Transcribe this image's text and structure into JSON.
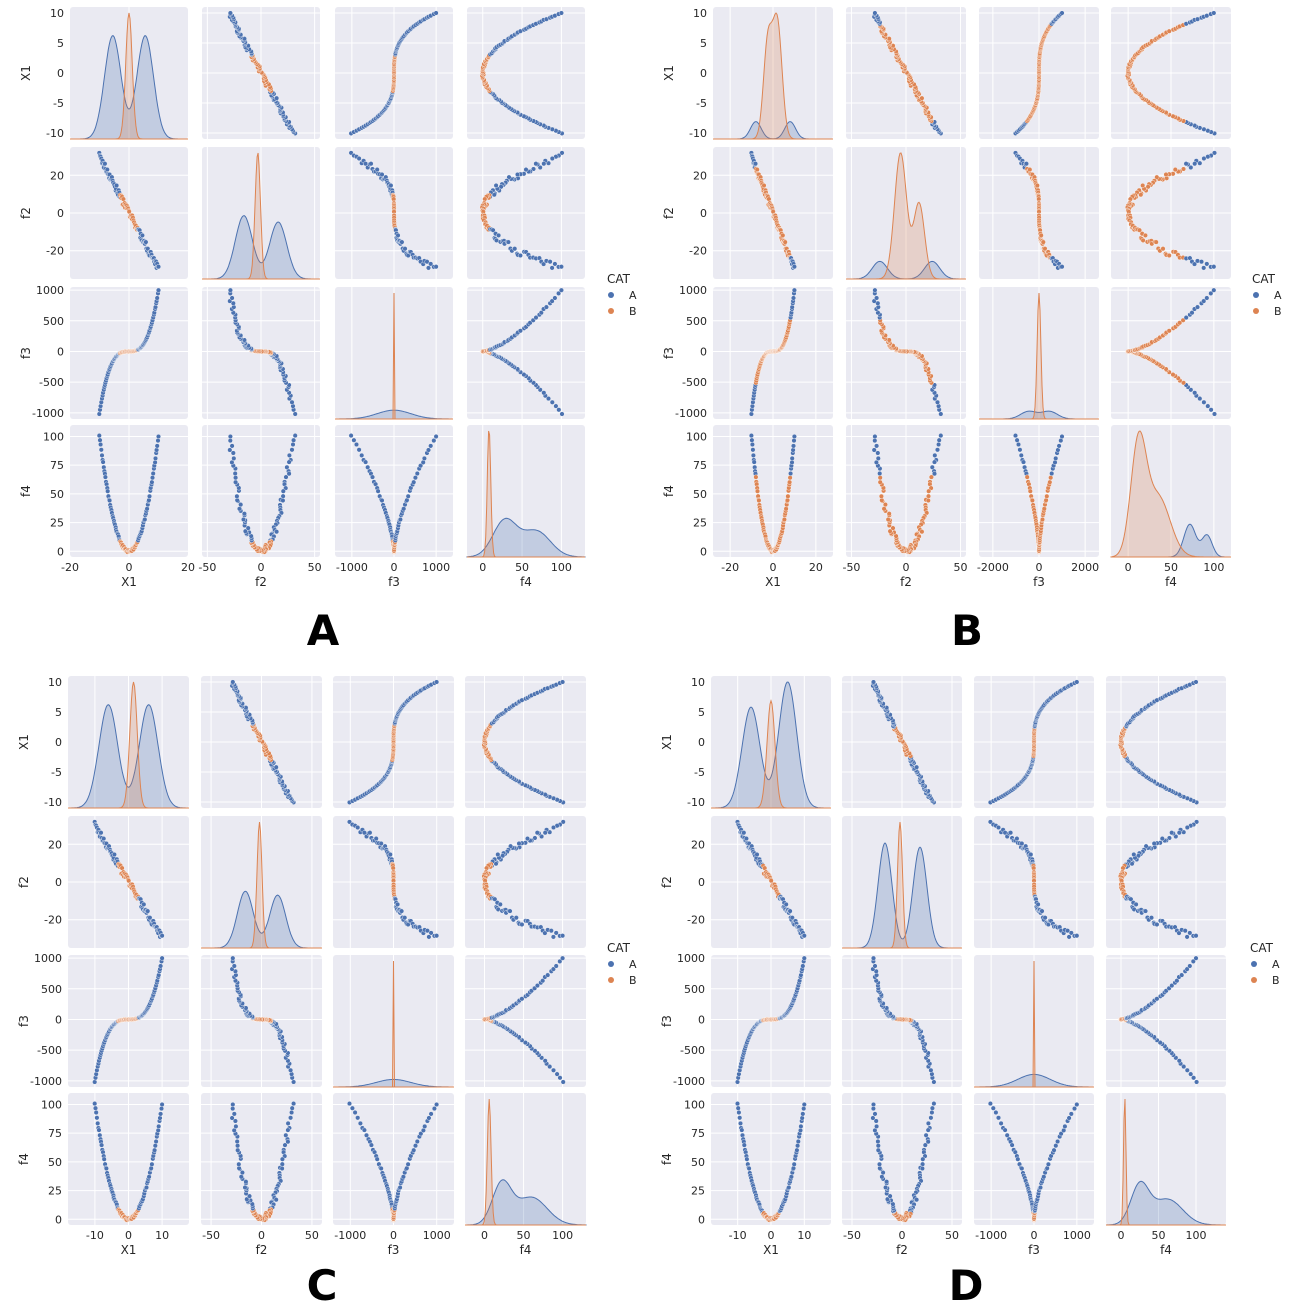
{
  "colors": {
    "A": "#4c72b0",
    "B": "#dd8452",
    "axes_bg": "#eaeaf2",
    "grid": "#ffffff"
  },
  "chart_data": [
    {
      "panel": "A",
      "type": "pairplot",
      "variables": [
        "X1",
        "f2",
        "f3",
        "f4"
      ],
      "hue": "CAT",
      "hue_levels": [
        "A",
        "B"
      ],
      "B_range": {
        "X1": [
          -3,
          3
        ]
      },
      "diag_kde": {
        "X1": {
          "A": [
            [
              -5.5,
              0.82,
              2.8
            ],
            [
              5.5,
              0.82,
              2.8
            ]
          ],
          "B": [
            [
              0,
              1.0,
              1.1
            ]
          ]
        },
        "f2": {
          "A": [
            [
              -16,
              0.5,
              8
            ],
            [
              16,
              0.45,
              8
            ]
          ],
          "B": [
            [
              -3,
              1.0,
              2.5
            ]
          ]
        },
        "f3": {
          "A": [
            [
              0,
              0.07,
              400
            ]
          ],
          "B": [
            [
              0,
              1.0,
              3
            ]
          ]
        },
        "f4": {
          "A": [
            [
              28,
              0.28,
              15
            ],
            [
              68,
              0.2,
              18
            ]
          ],
          "B": [
            [
              8,
              1.0,
              2.2
            ]
          ]
        }
      },
      "xlims": {
        "X1": [
          -20,
          20
        ],
        "f2": [
          -55,
          55
        ],
        "f3": [
          -1400,
          1400
        ],
        "f4": [
          -20,
          130
        ]
      },
      "ylims": {
        "X1": [
          -11,
          11
        ],
        "f2": [
          -35,
          35
        ],
        "f3": [
          -1100,
          1050
        ],
        "f4": [
          -5,
          110
        ]
      },
      "xticks": {
        "X1": [
          -20,
          0,
          20
        ],
        "f2": [
          -50,
          0,
          50
        ],
        "f3": [
          -1000,
          0,
          1000
        ],
        "f4": [
          0,
          50,
          100
        ]
      },
      "yticks": {
        "X1": [
          -10,
          -5,
          0,
          5,
          10
        ],
        "f2": [
          -20,
          0,
          20
        ],
        "f3": [
          -1000,
          -500,
          0,
          500,
          1000
        ],
        "f4": [
          0,
          25,
          50,
          75,
          100
        ]
      }
    },
    {
      "panel": "B",
      "type": "pairplot",
      "variables": [
        "X1",
        "f2",
        "f3",
        "f4"
      ],
      "hue": "CAT",
      "hue_levels": [
        "A",
        "B"
      ],
      "B_range": {
        "X1": [
          -8,
          8
        ]
      },
      "diag_kde": {
        "X1": {
          "A": [
            [
              -8,
              0.15,
              2.5
            ],
            [
              8,
              0.15,
              2.5
            ]
          ],
          "B": [
            [
              -2.5,
              0.8,
              2
            ],
            [
              2,
              1.0,
              2.2
            ]
          ]
        },
        "f2": {
          "A": [
            [
              -24,
              0.14,
              7
            ],
            [
              24,
              0.14,
              7
            ]
          ],
          "B": [
            [
              -5,
              1.0,
              5.5
            ],
            [
              12,
              0.6,
              5
            ]
          ]
        },
        "f3": {
          "A": [
            [
              -450,
              0.06,
              350
            ],
            [
              450,
              0.06,
              350
            ]
          ],
          "B": [
            [
              0,
              1.0,
              80
            ]
          ]
        },
        "f4": {
          "A": [
            [
              72,
              0.3,
              7
            ],
            [
              92,
              0.2,
              6
            ]
          ],
          "B": [
            [
              12,
              1.0,
              9
            ],
            [
              35,
              0.55,
              14
            ]
          ]
        }
      },
      "xlims": {
        "X1": [
          -28,
          28
        ],
        "f2": [
          -55,
          55
        ],
        "f3": [
          -2600,
          2600
        ],
        "f4": [
          -20,
          120
        ]
      },
      "ylims": {
        "X1": [
          -11,
          11
        ],
        "f2": [
          -35,
          35
        ],
        "f3": [
          -1100,
          1050
        ],
        "f4": [
          -5,
          110
        ]
      },
      "xticks": {
        "X1": [
          -20,
          0,
          20
        ],
        "f2": [
          -50,
          0,
          50
        ],
        "f3": [
          -2000,
          0,
          2000
        ],
        "f4": [
          0,
          50,
          100
        ]
      },
      "yticks": {
        "X1": [
          -10,
          -5,
          0,
          5,
          10
        ],
        "f2": [
          -20,
          0,
          20
        ],
        "f3": [
          -1000,
          -500,
          0,
          500,
          1000
        ],
        "f4": [
          0,
          25,
          50,
          75,
          100
        ]
      }
    },
    {
      "panel": "C",
      "type": "pairplot",
      "variables": [
        "X1",
        "f2",
        "f3",
        "f4"
      ],
      "hue": "CAT",
      "hue_levels": [
        "A",
        "B"
      ],
      "B_range": {
        "X1": [
          -3,
          3
        ]
      },
      "diag_kde": {
        "X1": {
          "A": [
            [
              -6,
              0.82,
              2.8
            ],
            [
              6,
              0.82,
              2.8
            ]
          ],
          "B": [
            [
              1.5,
              1.0,
              1.1
            ]
          ]
        },
        "f2": {
          "A": [
            [
              -16,
              0.45,
              8
            ],
            [
              16,
              0.42,
              8
            ]
          ],
          "B": [
            [
              -2,
              1.0,
              2.5
            ]
          ]
        },
        "f3": {
          "A": [
            [
              0,
              0.06,
              400
            ]
          ],
          "B": [
            [
              0,
              1.0,
              3
            ]
          ]
        },
        "f4": {
          "A": [
            [
              22,
              0.32,
              12
            ],
            [
              60,
              0.22,
              20
            ]
          ],
          "B": [
            [
              6,
              1.0,
              2.4
            ]
          ]
        }
      },
      "xlims": {
        "X1": [
          -18,
          18
        ],
        "f2": [
          -60,
          60
        ],
        "f3": [
          -1400,
          1400
        ],
        "f4": [
          -25,
          130
        ]
      },
      "ylims": {
        "X1": [
          -11,
          11
        ],
        "f2": [
          -35,
          35
        ],
        "f3": [
          -1100,
          1050
        ],
        "f4": [
          -5,
          110
        ]
      },
      "xticks": {
        "X1": [
          -10,
          0,
          10
        ],
        "f2": [
          -50,
          0,
          50
        ],
        "f3": [
          -1000,
          0,
          1000
        ],
        "f4": [
          0,
          50,
          100
        ]
      },
      "yticks": {
        "X1": [
          -10,
          -5,
          0,
          5,
          10
        ],
        "f2": [
          -20,
          0,
          20
        ],
        "f3": [
          -1000,
          -500,
          0,
          500,
          1000
        ],
        "f4": [
          0,
          25,
          50,
          75,
          100
        ]
      }
    },
    {
      "panel": "D",
      "type": "pairplot",
      "variables": [
        "X1",
        "f2",
        "f3",
        "f4"
      ],
      "hue": "CAT",
      "hue_levels": [
        "A",
        "B"
      ],
      "B_range": {
        "X1": [
          -2.5,
          2.5
        ]
      },
      "diag_kde": {
        "X1": {
          "A": [
            [
              -6,
              0.8,
              2.7
            ],
            [
              5,
              1.0,
              2.7
            ]
          ],
          "B": [
            [
              0,
              0.85,
              1.2
            ]
          ]
        },
        "f2": {
          "A": [
            [
              -17,
              0.75,
              7
            ],
            [
              18,
              0.72,
              7
            ]
          ],
          "B": [
            [
              -2,
              0.9,
              2.5
            ]
          ]
        },
        "f3": {
          "A": [
            [
              0,
              0.1,
              380
            ]
          ],
          "B": [
            [
              0,
              1.0,
              3
            ]
          ]
        },
        "f4": {
          "A": [
            [
              25,
              0.3,
              12
            ],
            [
              62,
              0.2,
              20
            ]
          ],
          "B": [
            [
              5,
              1.0,
              1.6
            ]
          ]
        }
      },
      "xlims": {
        "X1": [
          -18,
          18
        ],
        "f2": [
          -60,
          60
        ],
        "f3": [
          -1400,
          1400
        ],
        "f4": [
          -20,
          140
        ]
      },
      "ylims": {
        "X1": [
          -11,
          11
        ],
        "f2": [
          -35,
          35
        ],
        "f3": [
          -1100,
          1050
        ],
        "f4": [
          -5,
          110
        ]
      },
      "xticks": {
        "X1": [
          -10,
          0,
          10
        ],
        "f2": [
          -50,
          0,
          50
        ],
        "f3": [
          -1000,
          0,
          1000
        ],
        "f4": [
          0,
          50,
          100
        ]
      },
      "yticks": {
        "X1": [
          -10,
          -5,
          0,
          5,
          10
        ],
        "f2": [
          -20,
          0,
          20
        ],
        "f3": [
          -1000,
          -500,
          0,
          500,
          1000
        ],
        "f4": [
          0,
          25,
          50,
          75,
          100
        ]
      }
    }
  ],
  "legend": {
    "title": "CAT",
    "items": [
      "A",
      "B"
    ],
    "placement": "right-middle"
  },
  "panel_labels": [
    "A",
    "B",
    "C",
    "D"
  ]
}
